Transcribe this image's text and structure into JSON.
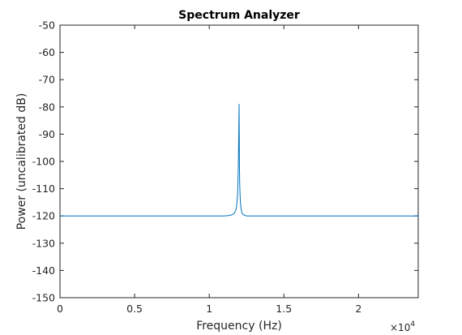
{
  "chart_data": {
    "type": "line",
    "title": "Spectrum Analyzer",
    "xlabel": "Frequency (Hz)",
    "ylabel": "Power (uncalibrated dB)",
    "x_exponent_base": "×10",
    "x_exponent_power": "4",
    "xlim": [
      0,
      24000
    ],
    "ylim": [
      -150,
      -50
    ],
    "x_ticks": [
      0,
      5000,
      10000,
      15000,
      20000
    ],
    "x_tick_labels": [
      "0",
      "0.5",
      "1",
      "1.5",
      "2"
    ],
    "y_ticks": [
      -150,
      -140,
      -130,
      -120,
      -110,
      -100,
      -90,
      -80,
      -70,
      -60,
      -50
    ],
    "y_tick_labels": [
      "-150",
      "-140",
      "-130",
      "-120",
      "-110",
      "-100",
      "-90",
      "-80",
      "-70",
      "-60",
      "-50"
    ],
    "grid": false,
    "line_color": "#0072bd",
    "series": [
      {
        "x": [
          0,
          11000,
          11400,
          11600,
          11700,
          11800,
          11850,
          11900,
          11930,
          11960,
          11980,
          12000,
          12010,
          12020,
          12040,
          12070,
          12100,
          12150,
          12200,
          12300,
          12500,
          13000,
          24000
        ],
        "values": [
          -120,
          -120,
          -119.8,
          -119.4,
          -118.8,
          -117.5,
          -115.5,
          -112,
          -106,
          -97,
          -88,
          -79,
          -90,
          -100,
          -108,
          -113,
          -116,
          -118,
          -119,
          -119.6,
          -120,
          -120,
          -120
        ]
      }
    ]
  }
}
